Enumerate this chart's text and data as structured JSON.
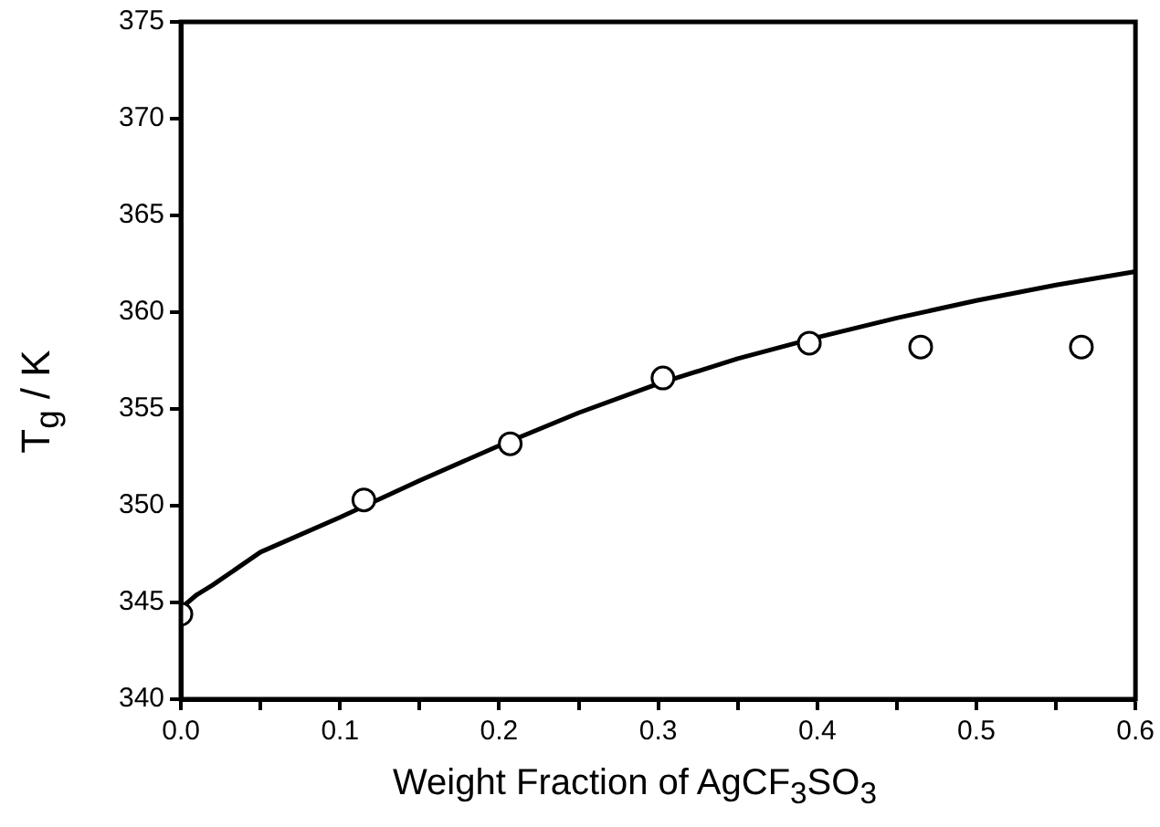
{
  "chart_data": {
    "type": "scatter",
    "xlabel": "Weight Fraction of AgCF$_{3}$SO$_{3}$",
    "ylabel": "T$_{g}$ / K",
    "xlim": [
      0,
      0.6
    ],
    "ylim": [
      340,
      375
    ],
    "xticks": [
      {
        "value": 0,
        "label": "0.0"
      },
      {
        "value": 0.05,
        "label": null
      },
      0.1,
      {
        "value": 0.15,
        "label": null
      },
      0.2,
      {
        "value": 0.25,
        "label": null
      },
      0.3,
      {
        "value": 0.35,
        "label": null
      },
      0.4,
      {
        "value": 0.45,
        "label": null
      },
      0.5,
      {
        "value": 0.55,
        "label": null
      },
      0.6
    ],
    "yticks": [
      340,
      345,
      350,
      355,
      360,
      365,
      370,
      375
    ],
    "grid": false,
    "legend": false,
    "series": [
      {
        "marker": "circle",
        "color": "#000000",
        "x": [
          0.0,
          0.115,
          0.207,
          0.303,
          0.395,
          0.465,
          0.566
        ],
        "values": [
          344.4,
          350.3,
          353.2,
          356.6,
          358.4,
          358.2,
          358.2
        ]
      },
      {
        "type": "line",
        "marker": "none",
        "line_style": "solid",
        "color": "#000000",
        "x": [
          0,
          0.01,
          0.02,
          0.05,
          0.1,
          0.15,
          0.2,
          0.25,
          0.3,
          0.35,
          0.4,
          0.45,
          0.5,
          0.55,
          0.6
        ],
        "values": [
          344.7,
          345.4,
          345.9,
          347.6,
          349.4,
          351.3,
          353.1,
          354.8,
          356.3,
          357.6,
          358.7,
          359.7,
          360.6,
          361.4,
          362.1
        ]
      }
    ]
  }
}
